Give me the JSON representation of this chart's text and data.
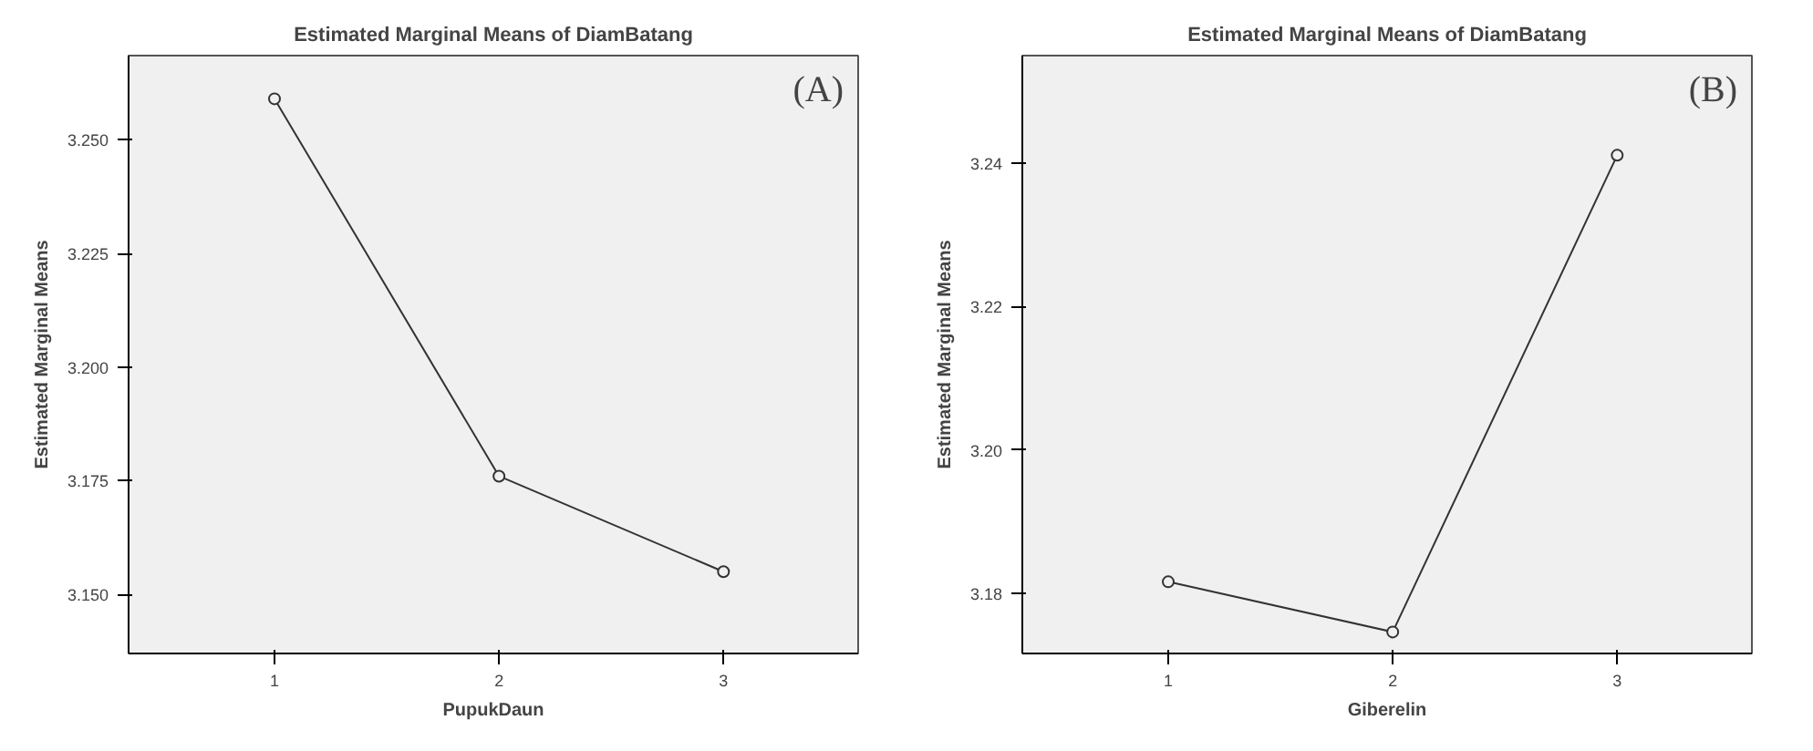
{
  "chart_data": [
    {
      "type": "line",
      "title": "Estimated Marginal Means of DiamBatang",
      "xlabel": "PupukDaun",
      "ylabel": "Estimated Marginal Means",
      "x": [
        1,
        2,
        3
      ],
      "xlim": [
        0.35,
        3.6
      ],
      "xticks": [
        1,
        2,
        3
      ],
      "ylim": [
        3.137,
        3.2685
      ],
      "yticks": [
        {
          "value": 3.15,
          "label": "3.150"
        },
        {
          "value": 3.175,
          "label": "3.175"
        },
        {
          "value": 3.2,
          "label": "3.200"
        },
        {
          "value": 3.225,
          "label": "3.225"
        },
        {
          "value": 3.25,
          "label": "3.250"
        }
      ],
      "series": [
        {
          "color": "#333333",
          "values": [
            3.259,
            3.176,
            3.155
          ]
        }
      ],
      "marker": "circle",
      "grid": false,
      "annotations": [
        "(A)"
      ]
    },
    {
      "type": "line",
      "title": "Estimated Marginal Means of DiamBatang",
      "xlabel": "Giberelin",
      "ylabel": "Estimated Marginal Means",
      "x": [
        1,
        2,
        3
      ],
      "xlim": [
        0.35,
        3.6
      ],
      "xticks": [
        1,
        2,
        3
      ],
      "ylim": [
        3.1716,
        3.255
      ],
      "yticks": [
        {
          "value": 3.18,
          "label": "3.18"
        },
        {
          "value": 3.2,
          "label": "3.20"
        },
        {
          "value": 3.22,
          "label": "3.22"
        },
        {
          "value": 3.24,
          "label": "3.24"
        }
      ],
      "series": [
        {
          "color": "#333333",
          "values": [
            3.1816,
            3.1746,
            3.2411
          ]
        }
      ],
      "marker": "circle",
      "grid": false,
      "annotations": [
        "(B)"
      ]
    }
  ]
}
